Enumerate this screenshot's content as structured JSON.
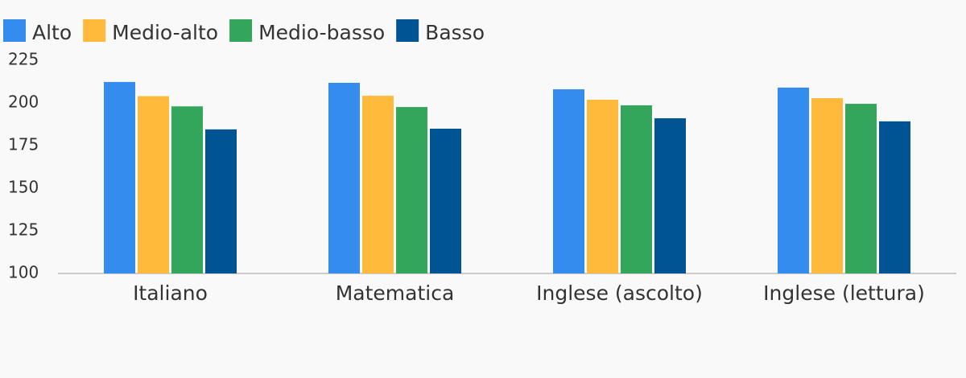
{
  "chart_data": {
    "type": "bar",
    "categories": [
      "Italiano",
      "Matematica",
      "Inglese (ascolto)",
      "Inglese (lettura)"
    ],
    "series": [
      {
        "name": "Alto",
        "color": "#348cef",
        "values": [
          212.3,
          211.8,
          208,
          209
        ]
      },
      {
        "name": "Medio-alto",
        "color": "#ffb93b",
        "values": [
          204,
          204.2,
          201.9,
          202.8
        ]
      },
      {
        "name": "Medio-basso",
        "color": "#33a65b",
        "values": [
          198,
          197.6,
          198.6,
          199.5
        ]
      },
      {
        "name": "Basso",
        "color": "#005493",
        "values": [
          184.5,
          184.9,
          191,
          189.2
        ]
      }
    ],
    "ylim": [
      100,
      225
    ],
    "yticks": [
      100,
      125,
      150,
      175,
      200,
      225
    ],
    "legend": "top-left"
  }
}
